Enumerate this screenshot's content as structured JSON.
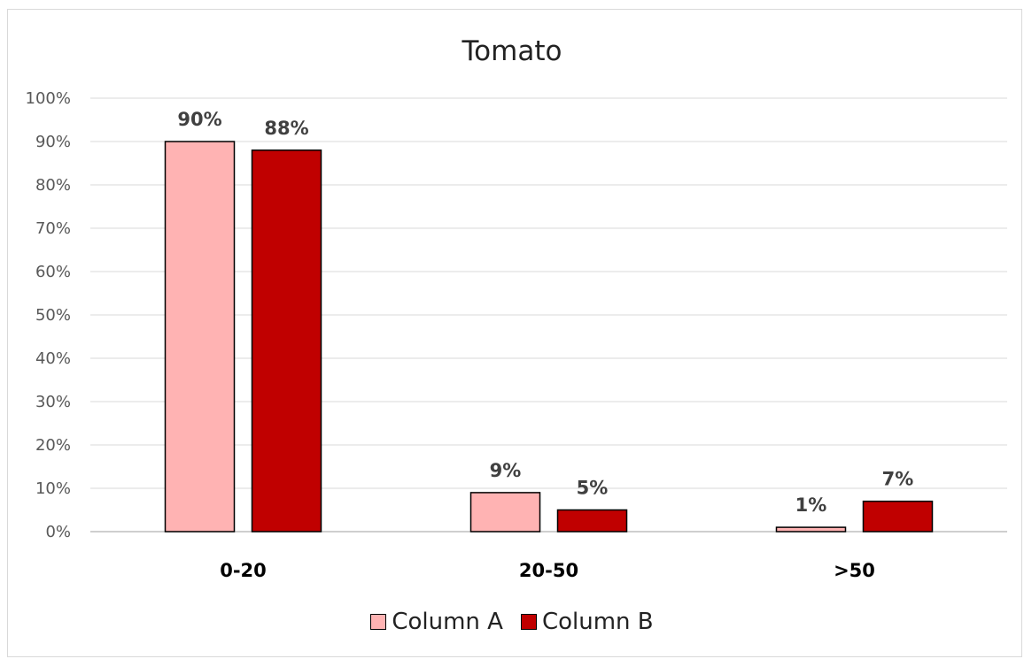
{
  "chart_data": {
    "type": "bar",
    "title": "Tomato",
    "categories": [
      "0-20",
      "20-50",
      ">50"
    ],
    "series": [
      {
        "name": "Column A",
        "values": [
          90,
          9,
          1
        ],
        "labels": [
          "90%",
          "9%",
          "1%"
        ],
        "color": "#ffb3b3"
      },
      {
        "name": "Column B",
        "values": [
          88,
          5,
          7
        ],
        "labels": [
          "88%",
          "5%",
          "7%"
        ],
        "color": "#c00000"
      }
    ],
    "yticks": [
      "0%",
      "10%",
      "20%",
      "30%",
      "40%",
      "50%",
      "60%",
      "70%",
      "80%",
      "90%",
      "100%"
    ],
    "ylim": [
      0,
      100
    ],
    "xlabel": "",
    "ylabel": "",
    "grid": true,
    "legend": "bottom"
  }
}
